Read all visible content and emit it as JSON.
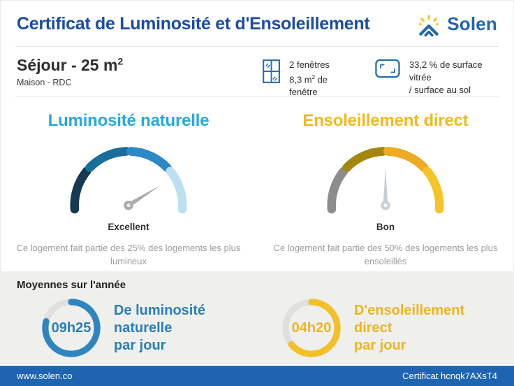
{
  "header": {
    "title": "Certificat de Luminosité et d'Ensoleillement",
    "brand": "Solen"
  },
  "colors": {
    "primary_blue": "#1c4da1",
    "brand_blue": "#2366ad",
    "brand_yellow": "#f6c41d",
    "icon_blue": "#2472b2",
    "cyan_title": "#29a9dc",
    "gold_title": "#f2ba1d",
    "footer_blue": "#1f64b1",
    "section_bg": "#efefec"
  },
  "room": {
    "title_main": "Séjour - 25 m",
    "title_sup": "2",
    "subtitle": "Maison - RDC",
    "windows": {
      "line1": "2 fenêtres",
      "line2_pre": "8,3 m",
      "line2_sup": "2",
      "line2_post": " de fenêtre"
    },
    "glazing": {
      "line1": "33,2 % de surface vitrée",
      "line2": "/ surface au sol"
    }
  },
  "gauges": {
    "left": {
      "title": "Luminosité naturelle",
      "rating": "Excellent",
      "desc1": "Ce logement fait partie des 25% des logements les plus",
      "desc2": "lumineux",
      "segments": [
        "#173a52",
        "#1a6e9c",
        "#2d89c6",
        "#bedff2"
      ],
      "needle_color": "#ababab",
      "needle_dot": "#e9e9e9",
      "needle_angle": 32
    },
    "right": {
      "title": "Ensoleillement direct",
      "rating": "Bon",
      "desc1": "Ce logement fait partie des 50% des logements les plus",
      "desc2": "ensoleillés",
      "segments": [
        "#8d8d8d",
        "#a5870f",
        "#edaa22",
        "#f5c42b"
      ],
      "needle_color": "#c7cfd6",
      "needle_dot": "#ffffff",
      "needle_angle": 90
    }
  },
  "averages": {
    "heading": "Moyennes sur l'année",
    "items": [
      {
        "value": "09h25",
        "line1": "De luminosité naturelle",
        "line2": "par jour",
        "percent": 79,
        "color": "#2e86c0"
      },
      {
        "value": "04h20",
        "line1": "D'ensoleillement direct",
        "line2": "par jour",
        "percent": 64,
        "color": "#f3c027"
      }
    ]
  },
  "footer": {
    "website": "www.solen.co",
    "certificate": "Certificat hcnqk7AXsT4"
  },
  "chart_data": [
    {
      "type": "gauge",
      "title": "Luminosité naturelle",
      "rating": "Excellent",
      "segment_count": 4,
      "segment_colors": [
        "#173a52",
        "#1a6e9c",
        "#2d89c6",
        "#bedff2"
      ],
      "arc_span_deg": 188,
      "needle_angle_deg": 32,
      "annotation": "Ce logement fait partie des 25% des logements les plus lumineux"
    },
    {
      "type": "gauge",
      "title": "Ensoleillement direct",
      "rating": "Bon",
      "segment_count": 4,
      "segment_colors": [
        "#8d8d8d",
        "#a5870f",
        "#edaa22",
        "#f5c42b"
      ],
      "arc_span_deg": 188,
      "needle_angle_deg": 90,
      "annotation": "Ce logement fait partie des 50% des logements les plus ensoleillés"
    },
    {
      "type": "donut",
      "label": "De luminosité naturelle par jour",
      "value": "09h25",
      "percent_filled": 79
    },
    {
      "type": "donut",
      "label": "D'ensoleillement direct par jour",
      "value": "04h20",
      "percent_filled": 64
    }
  ]
}
